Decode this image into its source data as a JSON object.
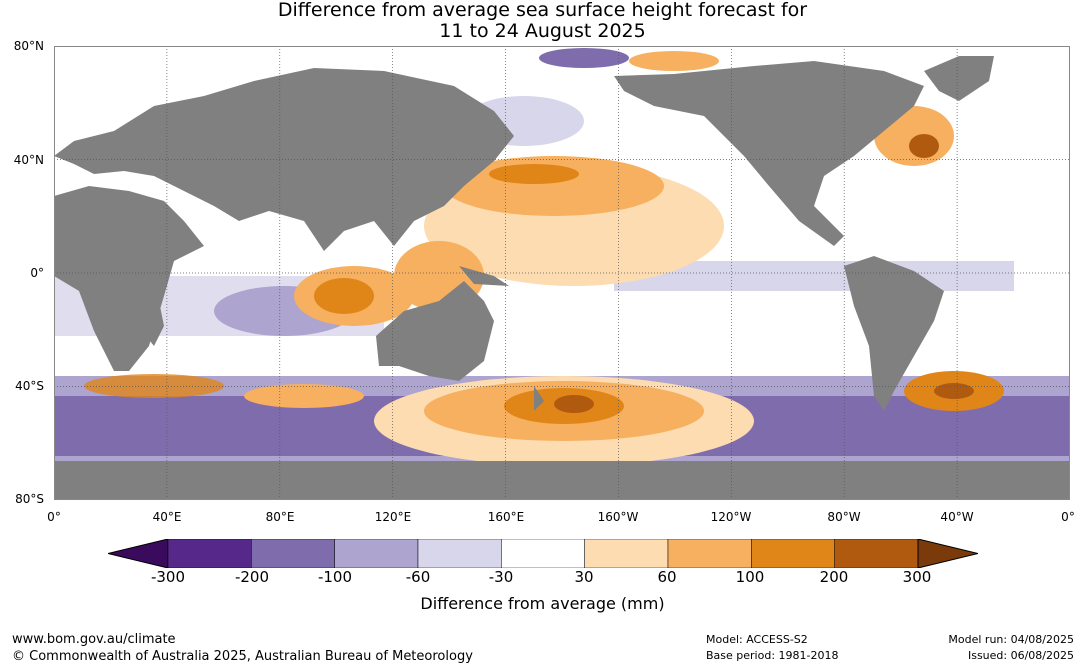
{
  "title": {
    "line1": "Difference from average sea surface height forecast for",
    "line2": "11 to 24 August 2025"
  },
  "map": {
    "lat_labels": [
      "80°N",
      "40°N",
      "0°",
      "40°S",
      "80°S"
    ],
    "lon_labels": [
      "0°",
      "40°E",
      "80°E",
      "120°E",
      "160°E",
      "160°W",
      "120°W",
      "80°W",
      "40°W",
      "0°"
    ]
  },
  "colorbar": {
    "ticks": [
      "-300",
      "-200",
      "-100",
      "-60",
      "-30",
      "30",
      "60",
      "100",
      "200",
      "300"
    ],
    "colors": [
      "#3a0a5c",
      "#55288a",
      "#7e6cad",
      "#ada4cf",
      "#d8d6ea",
      "#ffffff",
      "#fcdcb0",
      "#f6b060",
      "#e08518",
      "#b05a10",
      "#7a3a0a"
    ],
    "label": "Difference from average (mm)"
  },
  "colors": {
    "land": "#808080",
    "grid": "#555555"
  },
  "footer": {
    "website": "www.bom.gov.au/climate",
    "copyright": "© Commonwealth of Australia 2025, Australian Bureau of Meteorology",
    "model": "Model: ACCESS-S2",
    "base_period": "Base period: 1981-2018",
    "model_run": "Model run: 04/08/2025",
    "issued": "Issued: 06/08/2025"
  }
}
